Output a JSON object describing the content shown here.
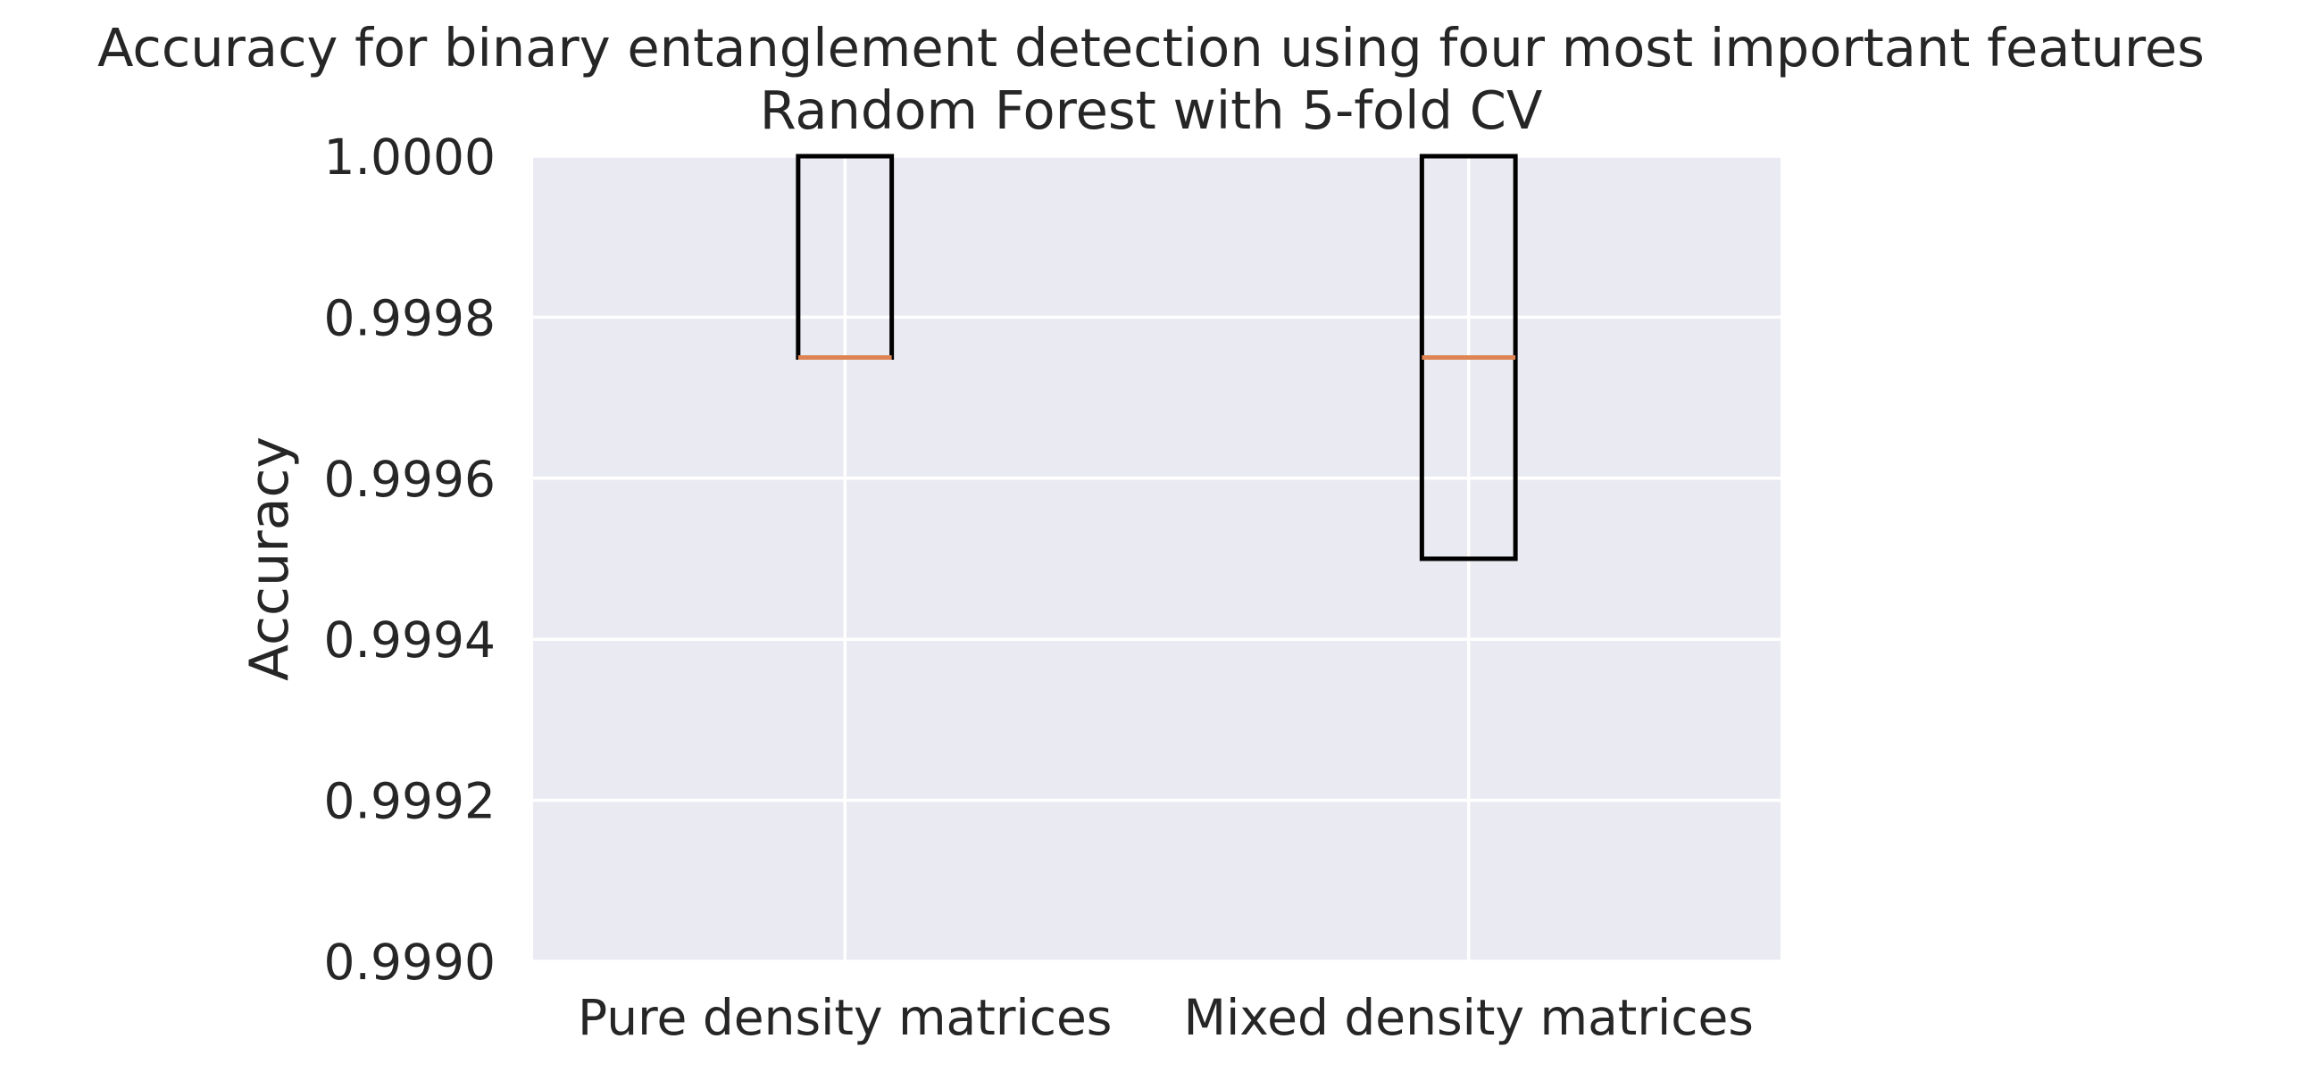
{
  "chart_data": {
    "type": "box",
    "title": [
      "Accuracy for binary entanglement detection using four most important features",
      "Random Forest with 5-fold CV"
    ],
    "xlabel": "",
    "ylabel": "Accuracy",
    "ylim": [
      0.999,
      1.0
    ],
    "yticks": [
      "0.9990",
      "0.9992",
      "0.9994",
      "0.9996",
      "0.9998",
      "1.0000"
    ],
    "yticks_values": [
      0.999,
      0.9992,
      0.9994,
      0.9996,
      0.9998,
      1.0
    ],
    "grid": true,
    "colors": {
      "plot_background": "#eaeaf2",
      "grid": "#ffffff",
      "box_edge": "#000000",
      "median": "#dd8452",
      "text": "#262626"
    },
    "categories": [
      "Pure density matrices",
      "Mixed density matrices"
    ],
    "boxes": [
      {
        "category": "Pure density matrices",
        "q1": 0.99975,
        "median": 0.99975,
        "q3": 1.0,
        "whisker_low": 0.99975,
        "whisker_high": 1.0
      },
      {
        "category": "Mixed density matrices",
        "q1": 0.9995,
        "median": 0.99975,
        "q3": 1.0,
        "whisker_low": 0.9995,
        "whisker_high": 1.0
      }
    ]
  }
}
